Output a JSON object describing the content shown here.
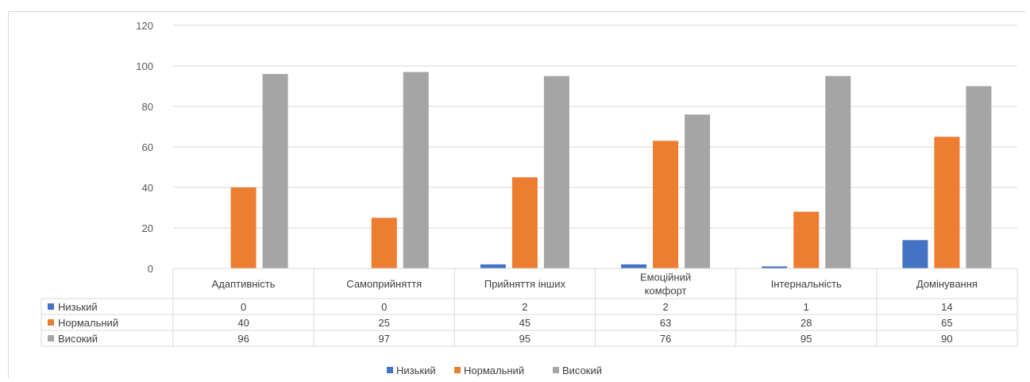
{
  "chart_data": {
    "type": "bar",
    "title": "",
    "xlabel": "",
    "ylabel": "",
    "ylim": [
      0,
      120
    ],
    "yticks": [
      0,
      20,
      40,
      60,
      80,
      100,
      120
    ],
    "grid": true,
    "legend_position": "bottom",
    "categories": [
      [
        "Адаптивність"
      ],
      [
        "Самоприйняття"
      ],
      [
        "Прийняття інших"
      ],
      [
        "Емоційний",
        "комфорт"
      ],
      [
        "Інтернальність"
      ],
      [
        "Домінування"
      ]
    ],
    "series": [
      {
        "name": "Низький",
        "color": "#4472c4",
        "values": [
          0,
          0,
          2,
          2,
          1,
          14
        ]
      },
      {
        "name": "Нормальний",
        "color": "#ed7d31",
        "values": [
          40,
          25,
          45,
          63,
          28,
          65
        ]
      },
      {
        "name": "Високий",
        "color": "#a5a5a5",
        "values": [
          96,
          97,
          95,
          76,
          95,
          90
        ]
      }
    ],
    "data_table": true
  }
}
